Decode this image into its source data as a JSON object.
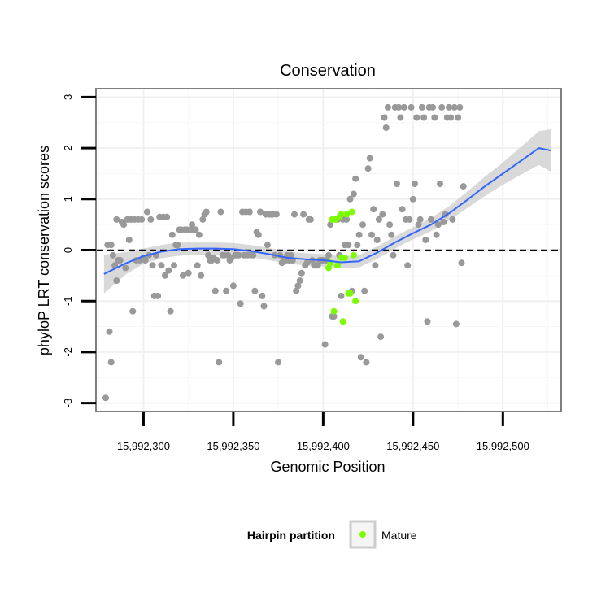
{
  "chart_data": {
    "type": "scatter",
    "title": "Conservation",
    "xlabel": "Genomic Position",
    "ylabel": "phyloP LRT conservation scores",
    "xlim": [
      15992274,
      15992532
    ],
    "ylim": [
      -3.15,
      3.15
    ],
    "x_ticks": [
      15992300,
      15992350,
      15992400,
      15992450,
      15992500
    ],
    "x_tick_labels": [
      "15,992,300",
      "15,992,350",
      "15,992,400",
      "15,992,450",
      "15,992,500"
    ],
    "y_ticks": [
      -3,
      -2,
      -1,
      0,
      1,
      2,
      3
    ],
    "y_tick_labels": [
      "-3",
      "-2",
      "-1",
      "0",
      "1",
      "2",
      "3"
    ],
    "grid": true,
    "reference_line": {
      "y": 0,
      "style": "dashed",
      "color": "#000000"
    },
    "legend": {
      "title": "Hairpin partition",
      "position": "bottom",
      "entries": [
        {
          "label": "Mature",
          "color": "#7cfc00"
        }
      ]
    },
    "colors": {
      "other": "#999999",
      "mature": "#7cfc00",
      "smooth": "#3366ff",
      "band": "#cccccc"
    },
    "series": [
      {
        "group": "other",
        "points": [
          [
            15992279,
            -2.9
          ],
          [
            15992280,
            0.1
          ],
          [
            15992281,
            -1.6
          ],
          [
            15992282,
            -2.2
          ],
          [
            15992282,
            0.1
          ],
          [
            15992283,
            -0.1
          ],
          [
            15992284,
            -0.3
          ],
          [
            15992285,
            -0.6
          ],
          [
            15992285,
            0.6
          ],
          [
            15992286,
            -0.2
          ],
          [
            15992287,
            -0.2
          ],
          [
            15992288,
            0.55
          ],
          [
            15992289,
            0.5
          ],
          [
            15992290,
            -0.35
          ],
          [
            15992291,
            0.6
          ],
          [
            15992292,
            0.2
          ],
          [
            15992293,
            0.6
          ],
          [
            15992294,
            -1.2
          ],
          [
            15992295,
            0.6
          ],
          [
            15992296,
            -0.2
          ],
          [
            15992297,
            0.6
          ],
          [
            15992298,
            -0.2
          ],
          [
            15992299,
            0.6
          ],
          [
            15992300,
            -0.15
          ],
          [
            15992301,
            -0.2
          ],
          [
            15992302,
            0.75
          ],
          [
            15992303,
            -0.1
          ],
          [
            15992304,
            0.6
          ],
          [
            15992305,
            -0.3
          ],
          [
            15992306,
            -0.9
          ],
          [
            15992307,
            -0.1
          ],
          [
            15992308,
            -0.9
          ],
          [
            15992309,
            0.65
          ],
          [
            15992310,
            -0.3
          ],
          [
            15992311,
            0.65
          ],
          [
            15992312,
            -0.5
          ],
          [
            15992313,
            0.65
          ],
          [
            15992314,
            -0.4
          ],
          [
            15992315,
            -1.2
          ],
          [
            15992316,
            0.3
          ],
          [
            15992317,
            -0.3
          ],
          [
            15992318,
            0.1
          ],
          [
            15992319,
            0.1
          ],
          [
            15992320,
            0.4
          ],
          [
            15992321,
            0.4
          ],
          [
            15992322,
            -0.5
          ],
          [
            15992323,
            0.4
          ],
          [
            15992324,
            0.4
          ],
          [
            15992325,
            -0.45
          ],
          [
            15992326,
            0.4
          ],
          [
            15992327,
            0.5
          ],
          [
            15992328,
            0.4
          ],
          [
            15992329,
            0.4
          ],
          [
            15992330,
            -0.3
          ],
          [
            15992331,
            0.3
          ],
          [
            15992332,
            -0.5
          ],
          [
            15992333,
            0.6
          ],
          [
            15992334,
            0.7
          ],
          [
            15992335,
            0.75
          ],
          [
            15992336,
            -0.1
          ],
          [
            15992337,
            -0.2
          ],
          [
            15992338,
            -0.2
          ],
          [
            15992339,
            -0.15
          ],
          [
            15992340,
            -0.8
          ],
          [
            15992341,
            -0.2
          ],
          [
            15992342,
            -2.2
          ],
          [
            15992343,
            0.75
          ],
          [
            15992344,
            -0.1
          ],
          [
            15992345,
            -0.1
          ],
          [
            15992346,
            -0.8
          ],
          [
            15992347,
            -0.1
          ],
          [
            15992348,
            -0.2
          ],
          [
            15992349,
            -0.15
          ],
          [
            15992350,
            -0.7
          ],
          [
            15992351,
            -0.1
          ],
          [
            15992352,
            -0.1
          ],
          [
            15992353,
            -0.1
          ],
          [
            15992354,
            -1.05
          ],
          [
            15992355,
            0.75
          ],
          [
            15992356,
            -0.1
          ],
          [
            15992357,
            0.75
          ],
          [
            15992358,
            -0.1
          ],
          [
            15992359,
            0.75
          ],
          [
            15992360,
            -0.1
          ],
          [
            15992361,
            -0.1
          ],
          [
            15992362,
            -0.8
          ],
          [
            15992363,
            0.35
          ],
          [
            15992364,
            0.3
          ],
          [
            15992365,
            0.75
          ],
          [
            15992366,
            -0.9
          ],
          [
            15992367,
            -1.1
          ],
          [
            15992368,
            0.7
          ],
          [
            15992369,
            0.1
          ],
          [
            15992370,
            0.7
          ],
          [
            15992371,
            0.7
          ],
          [
            15992372,
            0.7
          ],
          [
            15992373,
            -0.1
          ],
          [
            15992374,
            0.7
          ],
          [
            15992375,
            -2.2
          ],
          [
            15992376,
            -0.1
          ],
          [
            15992377,
            -0.25
          ],
          [
            15992378,
            -0.2
          ],
          [
            15992379,
            -0.2
          ],
          [
            15992380,
            -0.1
          ],
          [
            15992381,
            -0.2
          ],
          [
            15992382,
            -0.1
          ],
          [
            15992383,
            -0.2
          ],
          [
            15992384,
            0.7
          ],
          [
            15992385,
            -0.8
          ],
          [
            15992386,
            -0.7
          ],
          [
            15992387,
            -0.6
          ],
          [
            15992388,
            -0.45
          ],
          [
            15992389,
            0.7
          ],
          [
            15992390,
            -0.3
          ],
          [
            15992391,
            -0.25
          ],
          [
            15992392,
            0.6
          ],
          [
            15992393,
            0.6
          ],
          [
            15992394,
            -0.2
          ],
          [
            15992395,
            -0.3
          ],
          [
            15992396,
            -0.3
          ],
          [
            15992397,
            -0.3
          ],
          [
            15992398,
            -0.2
          ],
          [
            15992399,
            -0.2
          ],
          [
            15992400,
            -0.2
          ],
          [
            15992401,
            -1.85
          ],
          [
            15992402,
            -0.2
          ],
          [
            15992403,
            -0.1
          ],
          [
            15992404,
            0.5
          ],
          [
            15992405,
            -1.3
          ],
          [
            15992406,
            -1.3
          ],
          [
            15992407,
            0.6
          ],
          [
            15992408,
            0.6
          ],
          [
            15992409,
            -0.1
          ],
          [
            15992410,
            -0.9
          ],
          [
            15992411,
            0.6
          ],
          [
            15992412,
            0.1
          ],
          [
            15992413,
            0.6
          ],
          [
            15992414,
            0.1
          ],
          [
            15992415,
            1.0
          ],
          [
            15992416,
            -0.8
          ],
          [
            15992417,
            1.1
          ],
          [
            15992418,
            1.4
          ],
          [
            15992419,
            0.1
          ],
          [
            15992420,
            0.3
          ],
          [
            15992421,
            -2.1
          ],
          [
            15992422,
            0.5
          ],
          [
            15992423,
            -0.8
          ],
          [
            15992424,
            -2.2
          ],
          [
            15992425,
            1.6
          ],
          [
            15992426,
            1.8
          ],
          [
            15992427,
            0.3
          ],
          [
            15992428,
            0.8
          ],
          [
            15992429,
            -0.3
          ],
          [
            15992430,
            0.2
          ],
          [
            15992431,
            0.6
          ],
          [
            15992432,
            -1.7
          ],
          [
            15992433,
            0.7
          ],
          [
            15992434,
            2.6
          ],
          [
            15992435,
            2.4
          ],
          [
            15992436,
            2.8
          ],
          [
            15992437,
            0.5
          ],
          [
            15992438,
            0.3
          ],
          [
            15992439,
            -0.1
          ],
          [
            15992440,
            2.8
          ],
          [
            15992441,
            1.3
          ],
          [
            15992442,
            2.8
          ],
          [
            15992443,
            2.6
          ],
          [
            15992444,
            0.8
          ],
          [
            15992445,
            2.8
          ],
          [
            15992446,
            0.6
          ],
          [
            15992447,
            -0.3
          ],
          [
            15992448,
            0.6
          ],
          [
            15992449,
            2.8
          ],
          [
            15992450,
            1.0
          ],
          [
            15992451,
            1.3
          ],
          [
            15992452,
            2.6
          ],
          [
            15992453,
            0.5
          ],
          [
            15992454,
            0.6
          ],
          [
            15992455,
            2.8
          ],
          [
            15992456,
            2.6
          ],
          [
            15992457,
            0.2
          ],
          [
            15992458,
            -1.4
          ],
          [
            15992459,
            2.8
          ],
          [
            15992460,
            0.6
          ],
          [
            15992461,
            2.8
          ],
          [
            15992462,
            2.6
          ],
          [
            15992463,
            0.3
          ],
          [
            15992464,
            0.5
          ],
          [
            15992465,
            1.3
          ],
          [
            15992466,
            2.8
          ],
          [
            15992467,
            0.55
          ],
          [
            15992468,
            0.7
          ],
          [
            15992469,
            2.6
          ],
          [
            15992470,
            2.8
          ],
          [
            15992471,
            2.6
          ],
          [
            15992472,
            0.6
          ],
          [
            15992473,
            2.8
          ],
          [
            15992474,
            -1.45
          ],
          [
            15992475,
            2.6
          ],
          [
            15992476,
            2.8
          ],
          [
            15992477,
            -0.25
          ],
          [
            15992478,
            1.25
          ]
        ]
      },
      {
        "group": "mature",
        "name": "Mature",
        "points": [
          [
            15992403,
            -0.35
          ],
          [
            15992404,
            -0.25
          ],
          [
            15992405,
            0.6
          ],
          [
            15992406,
            -1.2
          ],
          [
            15992407,
            0.6
          ],
          [
            15992408,
            -0.3
          ],
          [
            15992409,
            0.65
          ],
          [
            15992410,
            0.7
          ],
          [
            15992410,
            -0.15
          ],
          [
            15992411,
            -1.4
          ],
          [
            15992412,
            -0.15
          ],
          [
            15992413,
            0.7
          ],
          [
            15992414,
            -0.85
          ],
          [
            15992415,
            -0.85
          ],
          [
            15992416,
            0.75
          ],
          [
            15992417,
            -0.1
          ],
          [
            15992418,
            -1.0
          ]
        ]
      }
    ],
    "smooth": [
      [
        15992278,
        -0.47
      ],
      [
        15992290,
        -0.26
      ],
      [
        15992300,
        -0.12
      ],
      [
        15992310,
        -0.03
      ],
      [
        15992320,
        0.02
      ],
      [
        15992330,
        0.03
      ],
      [
        15992340,
        0.03
      ],
      [
        15992350,
        0.02
      ],
      [
        15992360,
        -0.02
      ],
      [
        15992370,
        -0.08
      ],
      [
        15992380,
        -0.15
      ],
      [
        15992390,
        -0.18
      ],
      [
        15992400,
        -0.2
      ],
      [
        15992410,
        -0.24
      ],
      [
        15992420,
        -0.22
      ],
      [
        15992430,
        -0.05
      ],
      [
        15992440,
        0.15
      ],
      [
        15992450,
        0.33
      ],
      [
        15992460,
        0.5
      ],
      [
        15992470,
        0.72
      ],
      [
        15992480,
        0.98
      ],
      [
        15992490,
        1.25
      ],
      [
        15992500,
        1.5
      ],
      [
        15992510,
        1.75
      ],
      [
        15992520,
        2.0
      ],
      [
        15992527,
        1.95
      ]
    ],
    "band_halfwidth": [
      0.38,
      0.22,
      0.15,
      0.13,
      0.13,
      0.12,
      0.12,
      0.12,
      0.12,
      0.12,
      0.12,
      0.12,
      0.12,
      0.12,
      0.12,
      0.12,
      0.12,
      0.12,
      0.13,
      0.14,
      0.16,
      0.19,
      0.22,
      0.27,
      0.33,
      0.42
    ]
  }
}
